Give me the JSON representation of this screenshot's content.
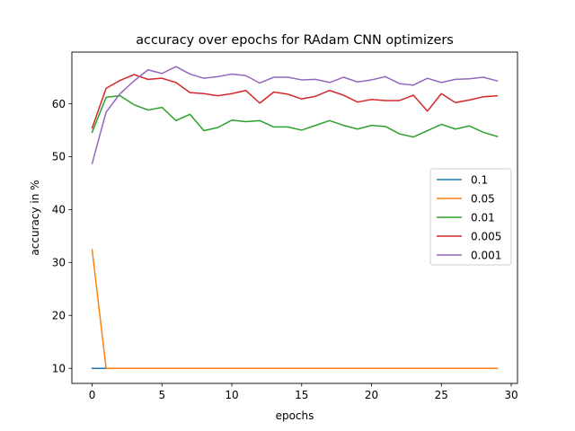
{
  "chart_data": {
    "type": "line",
    "title": "accuracy over epochs for RAdam CNN optimizers",
    "xlabel": "epochs",
    "ylabel": "accuracy in %",
    "xlim": [
      -1.45,
      30.45
    ],
    "ylim": [
      7.15,
      69.75
    ],
    "xticks": [
      0,
      5,
      10,
      15,
      20,
      25,
      30
    ],
    "yticks": [
      10,
      20,
      30,
      40,
      50,
      60
    ],
    "grid": false,
    "legend_position": "center-right",
    "x": [
      0,
      1,
      2,
      3,
      4,
      5,
      6,
      7,
      8,
      9,
      10,
      11,
      12,
      13,
      14,
      15,
      16,
      17,
      18,
      19,
      20,
      21,
      22,
      23,
      24,
      25,
      26,
      27,
      28,
      29
    ],
    "series": [
      {
        "name": "0.1",
        "color": "#1f77b4",
        "values": [
          10,
          10,
          10,
          10,
          10,
          10,
          10,
          10,
          10,
          10,
          10,
          10,
          10,
          10,
          10,
          10,
          10,
          10,
          10,
          10,
          10,
          10,
          10,
          10,
          10,
          10,
          10,
          10,
          10,
          10
        ]
      },
      {
        "name": "0.05",
        "color": "#ff7f0e",
        "values": [
          32.4,
          10,
          10,
          10,
          10,
          10,
          10,
          10,
          10,
          10,
          10,
          10,
          10,
          10,
          10,
          10,
          10,
          10,
          10,
          10,
          10,
          10,
          10,
          10,
          10,
          10,
          10,
          10,
          10,
          10
        ]
      },
      {
        "name": "0.01",
        "color": "#2ca02c",
        "values": [
          54.6,
          61.2,
          61.5,
          59.8,
          58.8,
          59.3,
          56.8,
          58.0,
          54.9,
          55.5,
          56.9,
          56.6,
          56.8,
          55.6,
          55.6,
          55.0,
          55.9,
          56.8,
          55.9,
          55.2,
          55.9,
          55.7,
          54.3,
          53.7,
          54.9,
          56.1,
          55.2,
          55.8,
          54.6,
          53.8
        ]
      },
      {
        "name": "0.005",
        "color": "#d62728",
        "values": [
          55.4,
          62.9,
          64.4,
          65.5,
          64.6,
          64.8,
          64.0,
          62.1,
          61.9,
          61.5,
          61.9,
          62.5,
          60.1,
          62.2,
          61.8,
          60.9,
          61.4,
          62.5,
          61.6,
          60.3,
          60.8,
          60.6,
          60.6,
          61.6,
          58.6,
          61.9,
          60.2,
          60.7,
          61.3,
          61.5
        ]
      },
      {
        "name": "0.001",
        "color": "#9467bd",
        "values": [
          48.7,
          58.4,
          61.9,
          64.3,
          66.4,
          65.7,
          67.0,
          65.6,
          64.8,
          65.1,
          65.6,
          65.3,
          63.9,
          65.0,
          65.0,
          64.5,
          64.6,
          64.0,
          65.0,
          64.1,
          64.5,
          65.1,
          63.8,
          63.5,
          64.8,
          64.0,
          64.6,
          64.7,
          65.0,
          64.3
        ]
      }
    ]
  }
}
